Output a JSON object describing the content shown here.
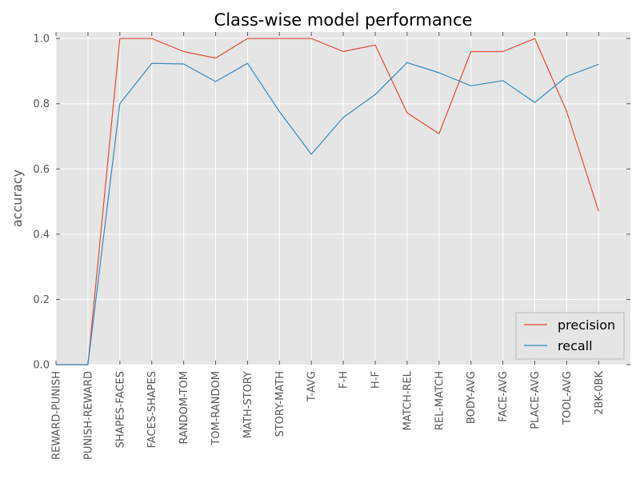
{
  "chart_data": {
    "type": "line",
    "title": "Class-wise model performance",
    "xlabel": "",
    "ylabel": "accuracy",
    "ylim": [
      0.0,
      1.02
    ],
    "y_ticks": [
      "0.0",
      "0.2",
      "0.4",
      "0.6",
      "0.8",
      "1.0"
    ],
    "categories": [
      "REWARD-PUNISH",
      "PUNISH-REWARD",
      "SHAPES-FACES",
      "FACES-SHAPES",
      "RANDOM-TOM",
      "TOM-RANDOM",
      "MATH-STORY",
      "STORY-MATH",
      "T-AVG",
      "F-H",
      "H-F",
      "MATCH-REL",
      "REL-MATCH",
      "BODY-AVG",
      "FACE-AVG",
      "PLACE-AVG",
      "TOOL-AVG",
      "2BK-0BK"
    ],
    "series": [
      {
        "name": "precision",
        "color": "#e24a33",
        "values": [
          0.0,
          0.0,
          1.0,
          1.0,
          0.96,
          0.94,
          1.0,
          1.0,
          1.0,
          0.96,
          0.98,
          0.772,
          0.708,
          0.96,
          0.96,
          1.0,
          0.776,
          0.47
        ]
      },
      {
        "name": "recall",
        "color": "#348abd",
        "values": [
          0.0,
          0.0,
          0.8,
          0.924,
          0.922,
          0.868,
          0.924,
          0.776,
          0.645,
          0.758,
          0.828,
          0.926,
          0.895,
          0.855,
          0.871,
          0.804,
          0.884,
          0.921
        ]
      }
    ],
    "grid": true,
    "legend_position": "lower right",
    "colors": {
      "plot_background": "#e5e5e5",
      "grid": "#ffffff"
    }
  }
}
